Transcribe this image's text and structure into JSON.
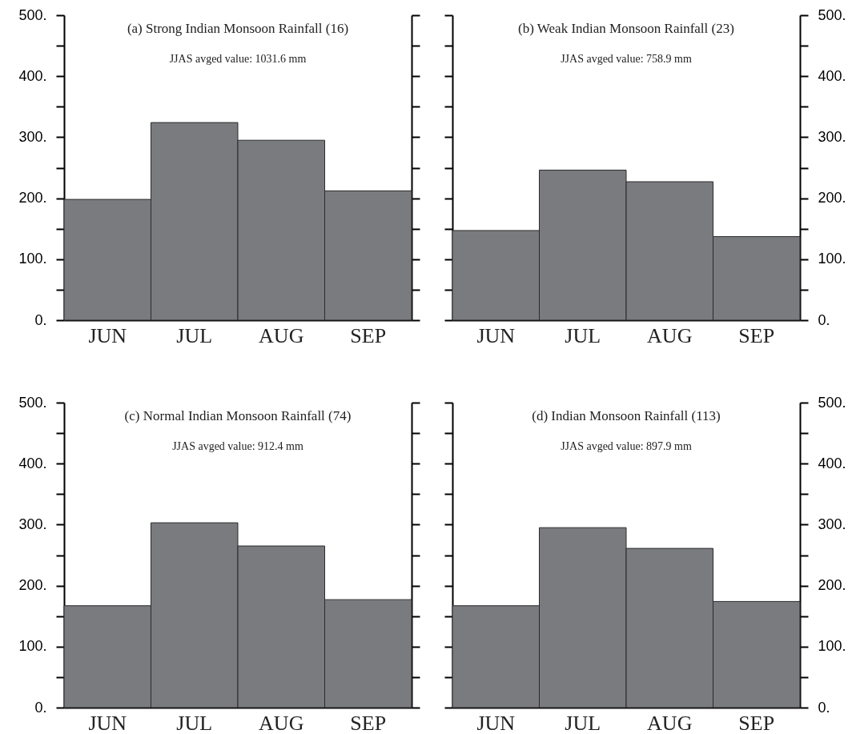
{
  "chart_data": [
    {
      "type": "bar",
      "title": "(a) Strong Indian Monsoon Rainfall (16)",
      "subtitle": "JJAS avged value: 1031.6 mm",
      "categories": [
        "JUN",
        "JUL",
        "AUG",
        "SEP"
      ],
      "series": [
        {
          "color": "#7a7b7f",
          "values": [
            198,
            324,
            295,
            212
          ]
        }
      ],
      "ylim": [
        0,
        500
      ],
      "yticks": [
        {
          "value": 0,
          "label": "0."
        },
        {
          "value": 50,
          "label": null
        },
        {
          "value": 100,
          "label": "100."
        },
        {
          "value": 150,
          "label": null
        },
        {
          "value": 200,
          "label": "200."
        },
        {
          "value": 250,
          "label": null
        },
        {
          "value": 300,
          "label": "300."
        },
        {
          "value": 350,
          "label": null
        },
        {
          "value": 400,
          "label": "400."
        },
        {
          "value": 450,
          "label": null
        },
        {
          "value": 500,
          "label": "500."
        }
      ]
    },
    {
      "type": "bar",
      "title": "(b) Weak Indian Monsoon Rainfall (23)",
      "subtitle": "JJAS avged value: 758.9 mm",
      "categories": [
        "JUN",
        "JUL",
        "AUG",
        "SEP"
      ],
      "series": [
        {
          "color": "#7a7b7f",
          "values": [
            147,
            246,
            227,
            137
          ],
          "axis": "y2"
        }
      ],
      "y2lim": [
        0,
        500
      ],
      "y2ticks": [
        {
          "value": 0,
          "label": "0."
        },
        {
          "value": 50,
          "label": null
        },
        {
          "value": 100,
          "label": "100."
        },
        {
          "value": 150,
          "label": null
        },
        {
          "value": 200,
          "label": "200."
        },
        {
          "value": 250,
          "label": null
        },
        {
          "value": 300,
          "label": "300."
        },
        {
          "value": 350,
          "label": null
        },
        {
          "value": 400,
          "label": "400."
        },
        {
          "value": 450,
          "label": null
        },
        {
          "value": 500,
          "label": "500."
        }
      ]
    },
    {
      "type": "bar",
      "title": "(c) Normal Indian Monsoon Rainfall (74)",
      "subtitle": "JJAS avged value: 912.4 mm",
      "categories": [
        "JUN",
        "JUL",
        "AUG",
        "SEP"
      ],
      "series": [
        {
          "color": "#7a7b7f",
          "values": [
            167,
            303,
            265,
            177
          ]
        }
      ],
      "ylim": [
        0,
        500
      ],
      "yticks": [
        {
          "value": 0,
          "label": "0."
        },
        {
          "value": 50,
          "label": null
        },
        {
          "value": 100,
          "label": "100."
        },
        {
          "value": 150,
          "label": null
        },
        {
          "value": 200,
          "label": "200."
        },
        {
          "value": 250,
          "label": null
        },
        {
          "value": 300,
          "label": "300."
        },
        {
          "value": 350,
          "label": null
        },
        {
          "value": 400,
          "label": "400."
        },
        {
          "value": 450,
          "label": null
        },
        {
          "value": 500,
          "label": "500."
        }
      ]
    },
    {
      "type": "bar",
      "title": "(d) Indian Monsoon Rainfall (113)",
      "subtitle": "JJAS avged value: 897.9 mm",
      "categories": [
        "JUN",
        "JUL",
        "AUG",
        "SEP"
      ],
      "series": [
        {
          "color": "#7a7b7f",
          "values": [
            167,
            295,
            261,
            174
          ],
          "axis": "y2"
        }
      ],
      "y2lim": [
        0,
        500
      ],
      "y2ticks": [
        {
          "value": 0,
          "label": "0."
        },
        {
          "value": 50,
          "label": null
        },
        {
          "value": 100,
          "label": "100."
        },
        {
          "value": 150,
          "label": null
        },
        {
          "value": 200,
          "label": "200."
        },
        {
          "value": 250,
          "label": null
        },
        {
          "value": 300,
          "label": "300."
        },
        {
          "value": 350,
          "label": null
        },
        {
          "value": 400,
          "label": "400."
        },
        {
          "value": 450,
          "label": null
        },
        {
          "value": 500,
          "label": "500."
        }
      ]
    }
  ]
}
